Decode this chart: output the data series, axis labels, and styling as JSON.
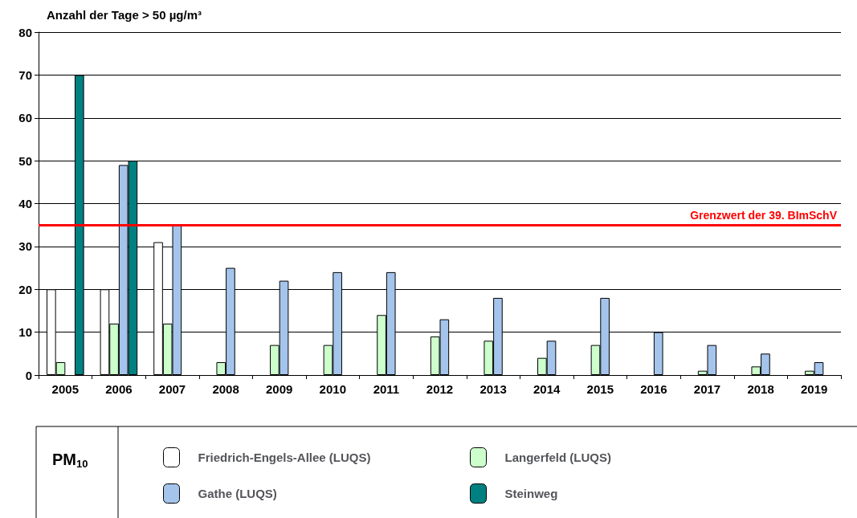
{
  "chart_data": {
    "type": "bar",
    "ylabel": "Anzahl der Tage > 50 µg/m³",
    "legend_title": "PM$_{10}$",
    "categories": [
      "2005",
      "2006",
      "2007",
      "2008",
      "2009",
      "2010",
      "2011",
      "2012",
      "2013",
      "2014",
      "2015",
      "2016",
      "2017",
      "2018",
      "2019"
    ],
    "series": [
      {
        "name": "Friedrich-Engels-Allee (LUQS)",
        "color": "#ffffff",
        "values": [
          20,
          20,
          31,
          null,
          null,
          null,
          null,
          null,
          null,
          null,
          null,
          null,
          null,
          null,
          null
        ]
      },
      {
        "name": "Langerfeld (LUQS)",
        "color": "#ccffcc",
        "values": [
          3,
          12,
          12,
          3,
          7,
          7,
          14,
          9,
          8,
          4,
          7,
          null,
          1,
          2,
          1
        ]
      },
      {
        "name": "Gathe (LUQS)",
        "color": "#a4c4ec",
        "values": [
          null,
          49,
          35,
          25,
          22,
          24,
          24,
          13,
          18,
          8,
          18,
          10,
          7,
          5,
          3
        ]
      },
      {
        "name": "Steinweg",
        "color": "#008080",
        "values": [
          70,
          50,
          null,
          null,
          null,
          null,
          null,
          null,
          null,
          null,
          null,
          null,
          null,
          null,
          null
        ]
      }
    ],
    "ylim": [
      0,
      80
    ],
    "yticks": [
      0,
      10,
      20,
      30,
      40,
      50,
      60,
      70,
      80
    ],
    "grid": "y",
    "legend": "bottom",
    "ref_lines": [
      {
        "axis": "y",
        "value": 35,
        "label": "Grenzwert der 39. BImSchV",
        "color": "#ff0000"
      }
    ]
  }
}
